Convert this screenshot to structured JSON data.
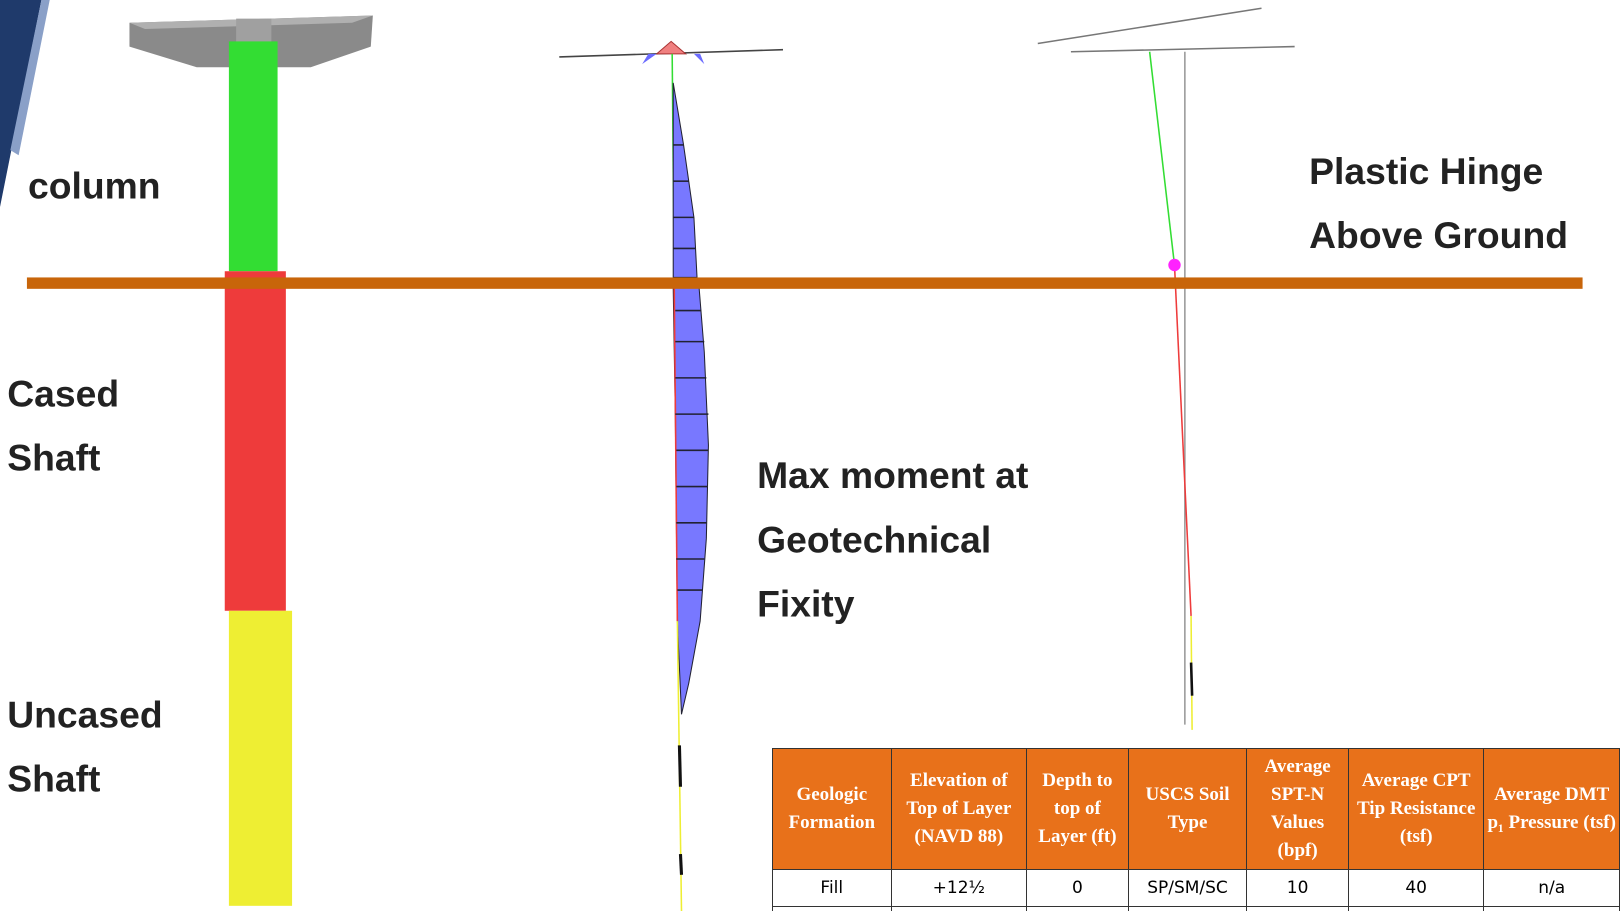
{
  "labels": {
    "column": [
      "column"
    ],
    "cased_shaft": [
      "Cased",
      "Shaft"
    ],
    "uncased_shaft": [
      "Uncased",
      "Shaft"
    ],
    "max_moment": [
      "Max moment at",
      "Geotechnical",
      "Fixity"
    ],
    "plastic_hinge": [
      "Plastic Hinge",
      "Above Ground"
    ]
  },
  "table": {
    "header": [
      "Geologic Formation",
      "Elevation of Top of Layer (NAVD 88)",
      "Depth to top of Layer (ft)",
      "USCS Soil Type",
      "Average SPT-N Values (bpf)",
      "Average CPT Tip Resistance (tsf)",
      "Average DMT p₁ Pressure (tsf)"
    ],
    "rows": [
      [
        "Fill",
        "+12½",
        "0",
        "SP/SM/SC",
        "10",
        "40",
        "n/a"
      ]
    ]
  }
}
